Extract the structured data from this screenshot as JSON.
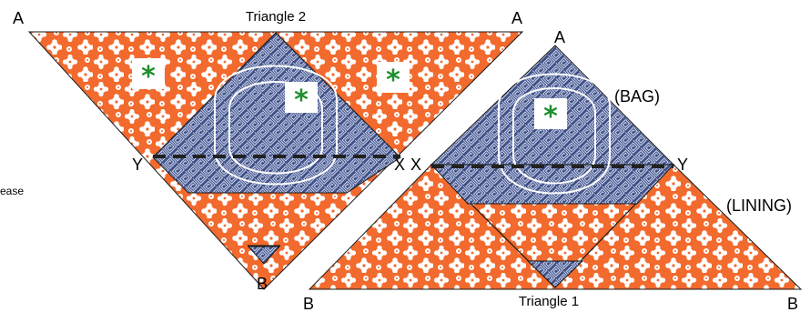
{
  "triangle2": {
    "title": "Triangle 2",
    "corner_left": "A",
    "corner_right": "A",
    "bottom_point": "B",
    "crease_left": "Y",
    "crease_right": "X"
  },
  "triangle1": {
    "title": "Triangle 1",
    "top_point": "A",
    "corner_left": "B",
    "corner_right": "B",
    "crease_left": "X",
    "crease_right": "Y",
    "bag_label": "(BAG)",
    "lining_label": "(LINING)"
  },
  "side_note": "ease",
  "star_symbol": "*",
  "colors": {
    "orange_fabric": "#f26a2d",
    "flower": "#ffffff",
    "blue_fabric": "#3f4f86",
    "blue_pattern": "#c9d2ea",
    "fold_line": "#222222",
    "star": "#1e8f2e",
    "outline": "#1a1a1a"
  }
}
